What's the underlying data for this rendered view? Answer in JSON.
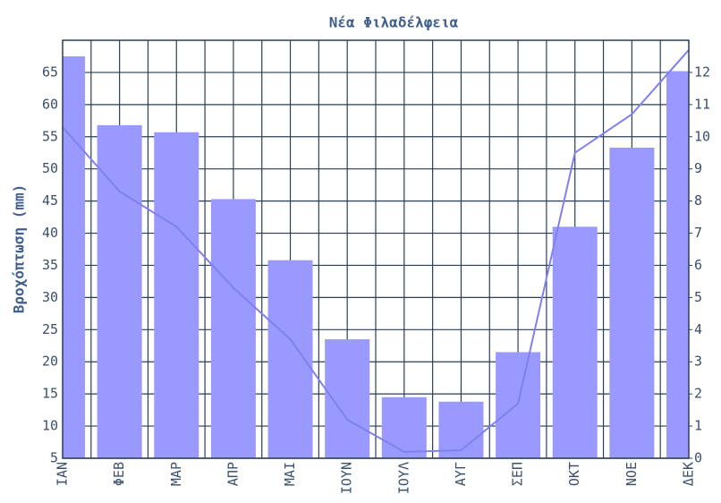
{
  "chart_data": {
    "type": "bar_line",
    "title": "Νέα Φιλαδέλφεια",
    "y_label": "Βροχόπτωση (mm)",
    "categories": [
      "ΙΑΝ",
      "ΦΕΒ",
      "ΜΑΡ",
      "ΑΠΡ",
      "ΜΑΙ",
      "ΙΟΥΝ",
      "ΙΟΥΛ",
      "ΑΥΓ",
      "ΣΕΠ",
      "ΟΚΤ",
      "ΝΟΕ",
      "ΔΕΚ"
    ],
    "series": [
      {
        "type": "bar",
        "color": "#9999ff",
        "values": [
          67.5,
          56.8,
          55.7,
          45.3,
          35.8,
          23.5,
          14.5,
          13.8,
          21.5,
          41,
          53.3,
          65.2
        ]
      },
      {
        "type": "line",
        "axis": "y2",
        "color": "#8080ee",
        "values": [
          10.3,
          8.3,
          7.2,
          5.3,
          3.7,
          1.2,
          0.2,
          0.25,
          1.7,
          9.5,
          10.7,
          12.7
        ]
      }
    ],
    "ylim": [
      5,
      70
    ],
    "yticks": [
      5,
      10,
      15,
      20,
      25,
      30,
      35,
      40,
      45,
      50,
      55,
      60,
      65
    ],
    "y2lim": [
      0,
      13
    ],
    "y2ticks": [
      0,
      1,
      2,
      3,
      4,
      5,
      6,
      7,
      8,
      9,
      10,
      11,
      12
    ],
    "grid": true
  }
}
